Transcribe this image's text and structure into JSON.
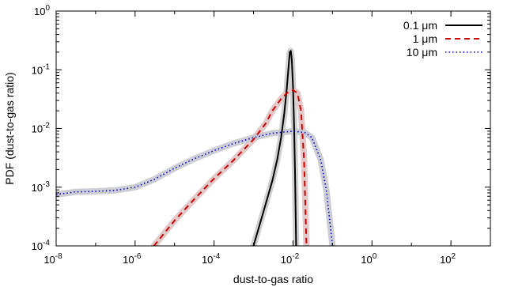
{
  "chart_data": {
    "type": "line",
    "xlabel": "dust-to-gas ratio",
    "ylabel": "PDF (dust-to-gas ratio)",
    "xscale": "log",
    "yscale": "log",
    "xlim": [
      1e-08,
      1000.0
    ],
    "ylim": [
      0.0001,
      1
    ],
    "grid": false,
    "legend_position": "top-right",
    "x_ticks": [
      {
        "value": 1e-08,
        "base": "10",
        "exp": "-8"
      },
      {
        "value": 1e-06,
        "base": "10",
        "exp": "-6"
      },
      {
        "value": 0.0001,
        "base": "10",
        "exp": "-4"
      },
      {
        "value": 0.01,
        "base": "10",
        "exp": "-2"
      },
      {
        "value": 1,
        "base": "10",
        "exp": "0"
      },
      {
        "value": 100.0,
        "base": "10",
        "exp": "2"
      }
    ],
    "y_ticks": [
      {
        "value": 0.0001,
        "base": "10",
        "exp": "-4"
      },
      {
        "value": 0.001,
        "base": "10",
        "exp": "-3"
      },
      {
        "value": 0.01,
        "base": "10",
        "exp": "-2"
      },
      {
        "value": 0.1,
        "base": "10",
        "exp": "-1"
      },
      {
        "value": 1,
        "base": "10",
        "exp": "0"
      }
    ],
    "series": [
      {
        "name": "0.1 μm",
        "color": "#000000",
        "style": "solid",
        "band_color": "#cccccc",
        "points": [
          [
            0.001,
            0.0001
          ],
          [
            0.002,
            0.0005
          ],
          [
            0.003,
            0.0013
          ],
          [
            0.004,
            0.003
          ],
          [
            0.005,
            0.007
          ],
          [
            0.006,
            0.018
          ],
          [
            0.007,
            0.05
          ],
          [
            0.0077,
            0.11
          ],
          [
            0.0083,
            0.2
          ],
          [
            0.0088,
            0.21
          ],
          [
            0.0093,
            0.15
          ],
          [
            0.01,
            0.05
          ],
          [
            0.0107,
            0.01
          ],
          [
            0.0113,
            0.0015
          ],
          [
            0.012,
            0.0001
          ]
        ]
      },
      {
        "name": "1 μm",
        "color": "#cc0000",
        "style": "dashed",
        "band_color": "#e0c4c4",
        "points": [
          [
            3e-06,
            0.0001
          ],
          [
            1e-05,
            0.00027
          ],
          [
            3e-05,
            0.0006
          ],
          [
            0.0001,
            0.0014
          ],
          [
            0.0003,
            0.0028
          ],
          [
            0.001,
            0.0065
          ],
          [
            0.002,
            0.012
          ],
          [
            0.003,
            0.02
          ],
          [
            0.005,
            0.032
          ],
          [
            0.007,
            0.04
          ],
          [
            0.01,
            0.045
          ],
          [
            0.013,
            0.04
          ],
          [
            0.016,
            0.02
          ],
          [
            0.019,
            0.003
          ],
          [
            0.022,
            0.0001
          ]
        ]
      },
      {
        "name": "10 μm",
        "color": "#0000cc",
        "style": "dotted",
        "band_color": "#c8c8d0",
        "points": [
          [
            1e-08,
            0.00075
          ],
          [
            3e-08,
            0.00083
          ],
          [
            1e-07,
            0.00085
          ],
          [
            3e-07,
            0.00088
          ],
          [
            1e-06,
            0.001
          ],
          [
            3e-06,
            0.00135
          ],
          [
            1e-05,
            0.0021
          ],
          [
            3e-05,
            0.003
          ],
          [
            0.0001,
            0.0042
          ],
          [
            0.0003,
            0.0055
          ],
          [
            0.001,
            0.007
          ],
          [
            0.003,
            0.0083
          ],
          [
            0.01,
            0.009
          ],
          [
            0.02,
            0.0085
          ],
          [
            0.03,
            0.007
          ],
          [
            0.05,
            0.003
          ],
          [
            0.07,
            0.0009
          ],
          [
            0.1,
            0.0001
          ]
        ]
      }
    ]
  }
}
